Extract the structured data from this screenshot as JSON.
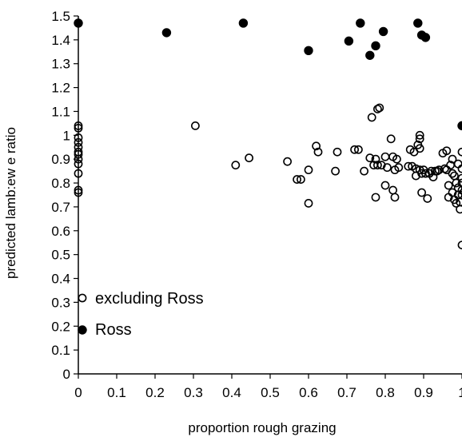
{
  "chart_data": {
    "type": "scatter",
    "title": "",
    "xlabel": "proportion rough grazing",
    "ylabel": "predicted lamb:ew e ratio",
    "xlim": [
      0,
      1
    ],
    "ylim": [
      0,
      1.5
    ],
    "xticks": [
      "0",
      "0.1",
      "0.2",
      "0.3",
      "0.4",
      "0.5",
      "0.6",
      "0.7",
      "0.8",
      "0.9",
      "1"
    ],
    "yticks": [
      "0",
      "0.1",
      "0.2",
      "0.3",
      "0.4",
      "0.5",
      "0.6",
      "0.7",
      "0.8",
      "0.9",
      "1",
      "1.1",
      "1.2",
      "1.3",
      "1.4",
      "1.5"
    ],
    "grid": false,
    "legend_position": "bottom-left",
    "series": [
      {
        "name": "excluding Ross",
        "marker": "open-circle",
        "color": "#000000",
        "points": [
          [
            0,
            1.04
          ],
          [
            0,
            1.03
          ],
          [
            0,
            0.99
          ],
          [
            0,
            0.97
          ],
          [
            0,
            0.95
          ],
          [
            0,
            0.93
          ],
          [
            0,
            0.92
          ],
          [
            0,
            0.9
          ],
          [
            0,
            0.88
          ],
          [
            0,
            0.84
          ],
          [
            0,
            0.77
          ],
          [
            0,
            0.76
          ],
          [
            0.305,
            1.04
          ],
          [
            0.41,
            0.875
          ],
          [
            0.445,
            0.905
          ],
          [
            0.545,
            0.89
          ],
          [
            0.57,
            0.815
          ],
          [
            0.58,
            0.815
          ],
          [
            0.6,
            0.855
          ],
          [
            0.6,
            0.715
          ],
          [
            0.62,
            0.955
          ],
          [
            0.625,
            0.93
          ],
          [
            0.67,
            0.85
          ],
          [
            0.675,
            0.93
          ],
          [
            0.72,
            0.94
          ],
          [
            0.73,
            0.94
          ],
          [
            0.745,
            0.85
          ],
          [
            0.76,
            0.905
          ],
          [
            0.765,
            1.075
          ],
          [
            0.77,
            0.875
          ],
          [
            0.775,
            0.9
          ],
          [
            0.78,
            0.875
          ],
          [
            0.78,
            1.11
          ],
          [
            0.785,
            1.115
          ],
          [
            0.79,
            0.875
          ],
          [
            0.775,
            0.74
          ],
          [
            0.8,
            0.91
          ],
          [
            0.8,
            0.79
          ],
          [
            0.805,
            0.865
          ],
          [
            0.815,
            0.985
          ],
          [
            0.82,
            0.77
          ],
          [
            0.82,
            0.91
          ],
          [
            0.825,
            0.74
          ],
          [
            0.825,
            0.855
          ],
          [
            0.83,
            0.9
          ],
          [
            0.835,
            0.865
          ],
          [
            0.86,
            0.87
          ],
          [
            0.865,
            0.94
          ],
          [
            0.87,
            0.87
          ],
          [
            0.875,
            0.93
          ],
          [
            0.88,
            0.86
          ],
          [
            0.88,
            0.83
          ],
          [
            0.885,
            0.96
          ],
          [
            0.89,
            1.0
          ],
          [
            0.89,
            0.985
          ],
          [
            0.89,
            0.945
          ],
          [
            0.89,
            0.855
          ],
          [
            0.895,
            0.84
          ],
          [
            0.895,
            0.76
          ],
          [
            0.9,
            0.855
          ],
          [
            0.905,
            0.84
          ],
          [
            0.91,
            0.735
          ],
          [
            0.915,
            0.84
          ],
          [
            0.92,
            0.85
          ],
          [
            0.925,
            0.825
          ],
          [
            0.93,
            0.85
          ],
          [
            0.935,
            0.85
          ],
          [
            0.94,
            0.855
          ],
          [
            0.95,
            0.925
          ],
          [
            0.955,
            0.86
          ],
          [
            0.96,
            0.935
          ],
          [
            0.96,
            0.855
          ],
          [
            0.965,
            0.79
          ],
          [
            0.965,
            0.74
          ],
          [
            0.97,
            0.875
          ],
          [
            0.975,
            0.9
          ],
          [
            0.975,
            0.84
          ],
          [
            0.975,
            0.76
          ],
          [
            0.98,
            0.83
          ],
          [
            0.98,
            0.73
          ],
          [
            0.985,
            0.8
          ],
          [
            0.985,
            0.715
          ],
          [
            0.99,
            0.88
          ],
          [
            0.99,
            0.78
          ],
          [
            0.99,
            0.75
          ],
          [
            0.995,
            0.72
          ],
          [
            0.995,
            0.69
          ],
          [
            1.0,
            0.93
          ],
          [
            1.0,
            0.86
          ],
          [
            1.0,
            0.82
          ],
          [
            1.0,
            0.8
          ],
          [
            1.0,
            0.77
          ],
          [
            1.0,
            0.75
          ],
          [
            1.0,
            0.54
          ]
        ]
      },
      {
        "name": "Ross",
        "marker": "filled-circle",
        "color": "#000000",
        "points": [
          [
            0,
            1.47
          ],
          [
            0.23,
            1.43
          ],
          [
            0.43,
            1.47
          ],
          [
            0.6,
            1.355
          ],
          [
            0.705,
            1.395
          ],
          [
            0.735,
            1.47
          ],
          [
            0.76,
            1.335
          ],
          [
            0.775,
            1.375
          ],
          [
            0.795,
            1.435
          ],
          [
            0.885,
            1.47
          ],
          [
            0.895,
            1.42
          ],
          [
            0.905,
            1.41
          ],
          [
            1.0,
            1.04
          ]
        ]
      }
    ]
  }
}
